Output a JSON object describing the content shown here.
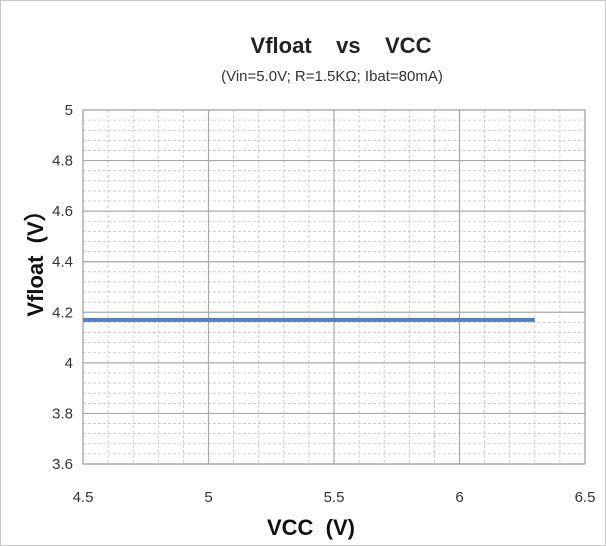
{
  "chart_data": {
    "type": "line",
    "title": "Vfloat    vs    VCC",
    "subtitle": "(Vin=5.0V; R=1.5KΩ; Ibat=80mA)",
    "xlabel": "VCC  (V)",
    "ylabel": "Vfloat  (V）",
    "xlim": [
      4.5,
      6.5
    ],
    "ylim": [
      3.6,
      5.0
    ],
    "x_major_step": 0.5,
    "y_major_step": 0.2,
    "x_ticks": [
      "4.5",
      "5",
      "5.5",
      "6",
      "6.5"
    ],
    "y_ticks": [
      "3.6",
      "3.8",
      "4",
      "4.2",
      "4.4",
      "4.6",
      "4.8",
      "5"
    ],
    "grid": true,
    "minor_grid": true,
    "legend": "none",
    "series": [
      {
        "color": "#4f81bd",
        "x": [
          4.5,
          4.8,
          5.1,
          5.4,
          5.7,
          6.0,
          6.3
        ],
        "y": [
          4.17,
          4.17,
          4.17,
          4.17,
          4.17,
          4.17,
          4.17
        ]
      }
    ],
    "colors": {
      "major_grid": "#a8a8a8",
      "minor_grid": "#c4c4c4",
      "plot_border": "#9a9a9a"
    }
  }
}
